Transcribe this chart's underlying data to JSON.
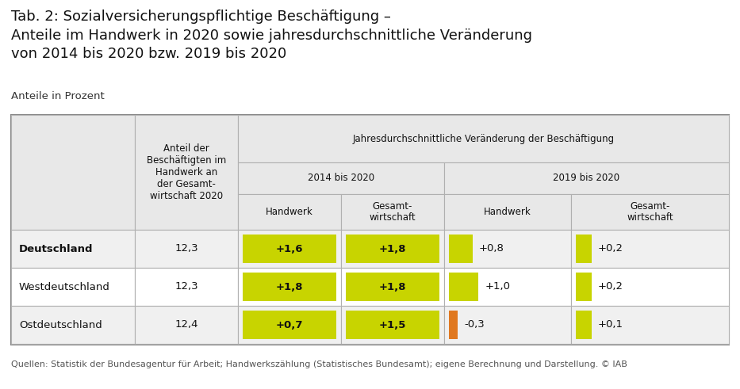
{
  "title_line1": "Tab. 2: Sozialversicherungspflichtige Beschäftigung –",
  "title_line2": "Anteile im Handwerk in 2020 sowie jahresdurchschnittliche Veränderung",
  "title_line3": "von 2014 bis 2020 bzw. 2019 bis 2020",
  "subtitle": "Anteile in Prozent",
  "footer": "Quellen: Statistik der Bundesagentur für Arbeit; Handwerkszählung (Statistisches Bundesamt); eigene Berechnung und Darstellung. © IAB",
  "header_merged_text": "Jahresdurchschnittliche Veränderung der Beschäftigung",
  "header_2014": "2014 bis 2020",
  "header_2019": "2019 bis 2020",
  "header_anteil": "Anteil der\nBeschäftigten im\nHandwerk an\nder Gesamt-\nwirtschaft 2020",
  "header_handwerk": "Handwerk",
  "header_gesamtwirtschaft": "Gesamt-\nwirtschaft",
  "rows": [
    {
      "label": "Deutschland",
      "bold": true,
      "anteil": "12,3",
      "hw_2014": "+1,6",
      "gw_2014": "+1,8",
      "hw_2019": "+0,8",
      "gw_2019": "+0,2",
      "hw_2019_color": "#c8d400",
      "hw_2019_is_neg": false
    },
    {
      "label": "Westdeutschland",
      "bold": false,
      "anteil": "12,3",
      "hw_2014": "+1,8",
      "gw_2014": "+1,8",
      "hw_2019": "+1,0",
      "gw_2019": "+0,2",
      "hw_2019_color": "#c8d400",
      "hw_2019_is_neg": false
    },
    {
      "label": "Ostdeutschland",
      "bold": false,
      "anteil": "12,4",
      "hw_2014": "+0,7",
      "gw_2014": "+1,5",
      "hw_2019": "-0,3",
      "gw_2019": "+0,1",
      "hw_2019_color": "#e07820",
      "hw_2019_is_neg": true
    }
  ],
  "color_yg": "#c8d400",
  "color_orange": "#e07820",
  "color_header_bg": "#e8e8e8",
  "color_border": "#b0b0b0",
  "color_row0_bg": "#f0f0f0",
  "color_row1_bg": "#ffffff",
  "color_row2_bg": "#f0f0f0"
}
